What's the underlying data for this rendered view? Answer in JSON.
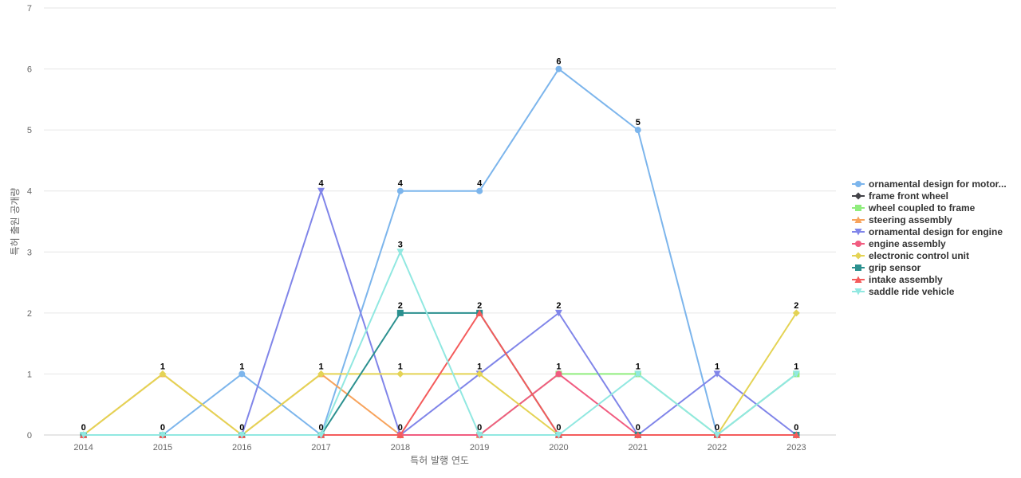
{
  "chart_data": {
    "type": "line",
    "title": "",
    "xlabel": "특허 발행 연도",
    "ylabel": "특허 출원 공개량",
    "ylim": [
      0,
      7
    ],
    "y_ticks": [
      0,
      1,
      2,
      3,
      4,
      5,
      6,
      7
    ],
    "categories": [
      "2014",
      "2015",
      "2016",
      "2017",
      "2018",
      "2019",
      "2020",
      "2021",
      "2022",
      "2023"
    ],
    "grid": "horizontal",
    "legend_position": "right",
    "series": [
      {
        "name": "ornamental design for motor...",
        "color": "#7cb5ec",
        "marker": "circle",
        "values": [
          0,
          0,
          1,
          0,
          4,
          4,
          6,
          5,
          0,
          1
        ]
      },
      {
        "name": "frame front wheel",
        "color": "#434348",
        "marker": "diamond",
        "values": [
          0,
          0,
          0,
          0,
          0,
          0,
          0,
          0,
          0,
          0
        ]
      },
      {
        "name": "wheel coupled to frame",
        "color": "#90ed7d",
        "marker": "square",
        "values": [
          0,
          0,
          0,
          0,
          0,
          0,
          1,
          1,
          0,
          1
        ]
      },
      {
        "name": "steering assembly",
        "color": "#f7a35c",
        "marker": "triangle",
        "values": [
          0,
          1,
          0,
          1,
          0,
          0,
          0,
          0,
          0,
          0
        ]
      },
      {
        "name": "ornamental design for engine",
        "color": "#8085e9",
        "marker": "triangle-down",
        "values": [
          0,
          0,
          0,
          4,
          0,
          1,
          2,
          0,
          1,
          0
        ]
      },
      {
        "name": "engine assembly",
        "color": "#f15c80",
        "marker": "circle",
        "values": [
          0,
          0,
          0,
          0,
          0,
          0,
          1,
          0,
          0,
          0
        ]
      },
      {
        "name": "electronic control unit",
        "color": "#e4d354",
        "marker": "diamond",
        "values": [
          0,
          1,
          0,
          1,
          1,
          1,
          0,
          0,
          0,
          2
        ]
      },
      {
        "name": "grip sensor",
        "color": "#2b908f",
        "marker": "square",
        "values": [
          0,
          0,
          0,
          0,
          2,
          2,
          0,
          0,
          0,
          0
        ]
      },
      {
        "name": "intake assembly",
        "color": "#f45b5b",
        "marker": "triangle",
        "values": [
          0,
          0,
          0,
          0,
          0,
          2,
          0,
          0,
          0,
          0
        ]
      },
      {
        "name": "saddle ride vehicle",
        "color": "#91e8e1",
        "marker": "triangle-down",
        "values": [
          0,
          0,
          0,
          0,
          3,
          0,
          0,
          1,
          0,
          1
        ]
      }
    ],
    "data_labels": [
      {
        "x": "2014",
        "text": "0",
        "y": 0
      },
      {
        "x": "2015",
        "text": "1",
        "y": 1
      },
      {
        "x": "2015",
        "text": "0",
        "y": 0
      },
      {
        "x": "2016",
        "text": "1",
        "y": 1
      },
      {
        "x": "2016",
        "text": "0",
        "y": 0
      },
      {
        "x": "2017",
        "text": "4",
        "y": 4
      },
      {
        "x": "2017",
        "text": "1",
        "y": 1
      },
      {
        "x": "2017",
        "text": "0",
        "y": 0
      },
      {
        "x": "2018",
        "text": "4",
        "y": 4
      },
      {
        "x": "2018",
        "text": "3",
        "y": 3
      },
      {
        "x": "2018",
        "text": "2",
        "y": 2
      },
      {
        "x": "2018",
        "text": "1",
        "y": 1
      },
      {
        "x": "2018",
        "text": "0",
        "y": 0
      },
      {
        "x": "2019",
        "text": "4",
        "y": 4
      },
      {
        "x": "2019",
        "text": "2",
        "y": 2
      },
      {
        "x": "2019",
        "text": "1",
        "y": 1
      },
      {
        "x": "2019",
        "text": "0",
        "y": 0
      },
      {
        "x": "2020",
        "text": "6",
        "y": 6
      },
      {
        "x": "2020",
        "text": "2",
        "y": 2
      },
      {
        "x": "2020",
        "text": "1",
        "y": 1
      },
      {
        "x": "2020",
        "text": "0",
        "y": 0
      },
      {
        "x": "2021",
        "text": "5",
        "y": 5
      },
      {
        "x": "2021",
        "text": "1",
        "y": 1
      },
      {
        "x": "2021",
        "text": "0",
        "y": 0
      },
      {
        "x": "2022",
        "text": "1",
        "y": 1
      },
      {
        "x": "2022",
        "text": "0",
        "y": 0
      },
      {
        "x": "2023",
        "text": "2",
        "y": 2
      },
      {
        "x": "2023",
        "text": "1",
        "y": 1
      },
      {
        "x": "2023",
        "text": "0",
        "y": 0
      }
    ]
  }
}
